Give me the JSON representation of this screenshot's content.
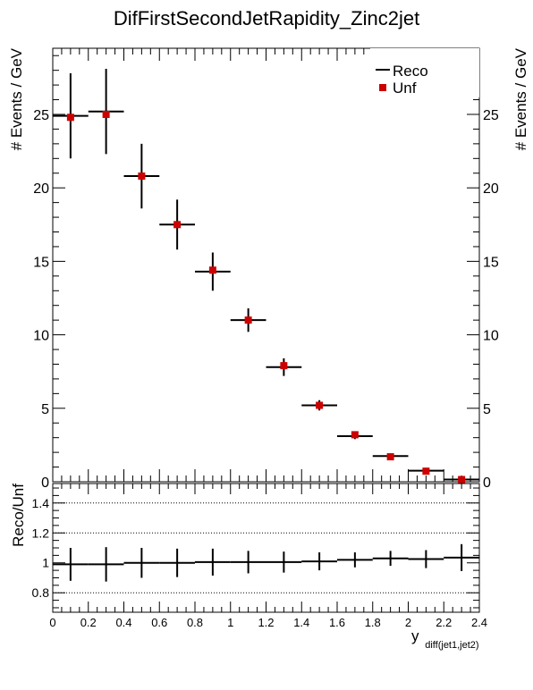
{
  "chart_data": [
    {
      "type": "scatter",
      "title": "DifFirstSecondJetRapidity_Zinc2jet",
      "ylabel": "# Events / GeV",
      "xlim": [
        0,
        2.4
      ],
      "ylim": [
        0,
        29.5
      ],
      "yticks": [
        0,
        5,
        10,
        15,
        20,
        25
      ],
      "legend": {
        "position": "top-right",
        "entries": [
          "Reco",
          "Unf"
        ]
      },
      "bin_edges": [
        0,
        0.2,
        0.4,
        0.6,
        0.8,
        1.0,
        1.2,
        1.4,
        1.6,
        1.8,
        2.0,
        2.2,
        2.4
      ],
      "series": [
        {
          "name": "Reco",
          "style": "histogram-with-errors",
          "color": "#000000",
          "values": [
            24.9,
            25.2,
            20.8,
            17.5,
            14.3,
            11.0,
            7.8,
            5.2,
            3.1,
            1.75,
            0.75,
            0.15
          ],
          "errors": [
            2.9,
            2.9,
            2.2,
            1.7,
            1.3,
            0.8,
            0.6,
            0.35,
            0.2,
            0.15,
            0.1,
            0.06
          ]
        },
        {
          "name": "Unf",
          "style": "markers",
          "color": "#cc0000",
          "values": [
            24.8,
            25.0,
            20.8,
            17.5,
            14.4,
            11.0,
            7.9,
            5.2,
            3.2,
            1.7,
            0.72,
            0.15
          ]
        }
      ]
    },
    {
      "type": "scatter",
      "title": "",
      "xlabel": "y",
      "xlabel_sub": "diff(jet1,jet2)",
      "ylabel": "Reco/Unf",
      "xlim": [
        0,
        2.4
      ],
      "ylim": [
        0.67,
        1.53
      ],
      "xticks": [
        "0",
        "0.2",
        "0.4",
        "0.6",
        "0.8",
        "1",
        "1.2",
        "1.4",
        "1.6",
        "1.8",
        "2",
        "2.2",
        "2.4"
      ],
      "yticks": [
        "0.8",
        "1",
        "1.2",
        "1.4"
      ],
      "gridlines_y": [
        0.8,
        1.2,
        1.4
      ],
      "series": [
        {
          "name": "",
          "style": "histogram-with-errors",
          "color": "#000000",
          "values": [
            0.99,
            0.99,
            1.0,
            1.0,
            1.005,
            1.005,
            1.005,
            1.01,
            1.02,
            1.03,
            1.025,
            1.035
          ],
          "errors": [
            0.11,
            0.115,
            0.1,
            0.095,
            0.09,
            0.075,
            0.07,
            0.06,
            0.05,
            0.05,
            0.06,
            0.09
          ]
        }
      ]
    }
  ]
}
